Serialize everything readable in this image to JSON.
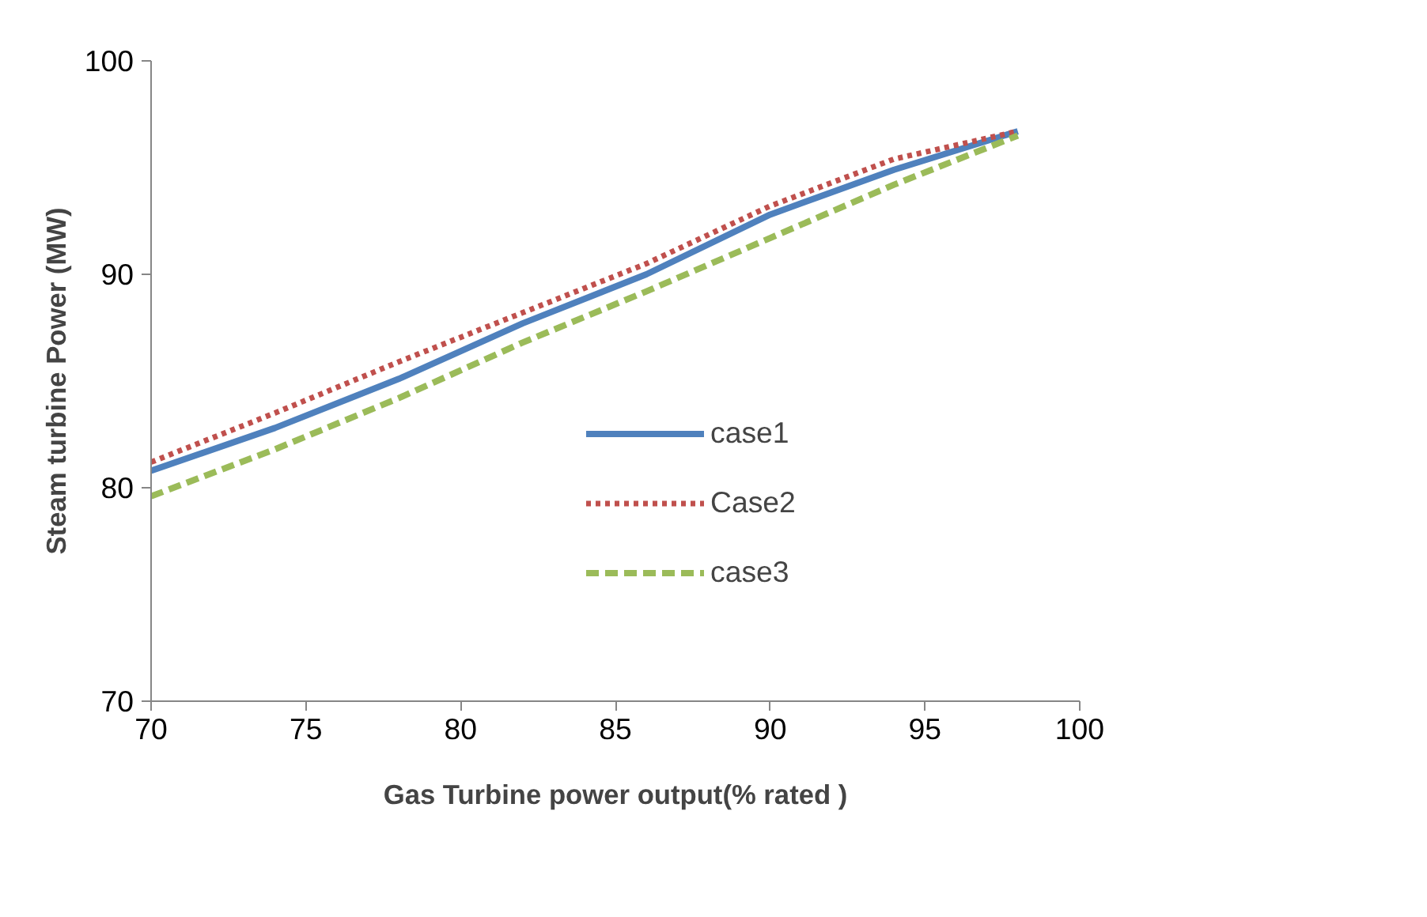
{
  "chart_data": {
    "type": "line",
    "xlabel": "Gas Turbine power output(% rated )",
    "ylabel": "Steam turbine Power (MW)",
    "x": [
      70,
      74,
      78,
      82,
      86,
      90,
      94,
      98
    ],
    "xlim": [
      70,
      100
    ],
    "xticks": [
      70,
      75,
      80,
      85,
      90,
      95,
      100
    ],
    "ylim": [
      70,
      100
    ],
    "yticks": [
      70,
      80,
      90,
      100
    ],
    "grid": false,
    "legend": "right",
    "marker": "none",
    "series": [
      {
        "name": "case1",
        "color": "#4f81bd",
        "line_style": "solid",
        "values": [
          80.8,
          82.8,
          85.1,
          87.7,
          90.0,
          92.8,
          94.9,
          96.7
        ]
      },
      {
        "name": "Case2",
        "color": "#c0504d",
        "line_style": "dotted",
        "values": [
          81.2,
          83.5,
          85.9,
          88.2,
          90.5,
          93.2,
          95.4,
          96.7
        ]
      },
      {
        "name": "case3",
        "color": "#9bbb59",
        "line_style": "dashed",
        "values": [
          79.6,
          81.8,
          84.2,
          86.8,
          89.2,
          91.7,
          94.2,
          96.5
        ]
      }
    ]
  }
}
